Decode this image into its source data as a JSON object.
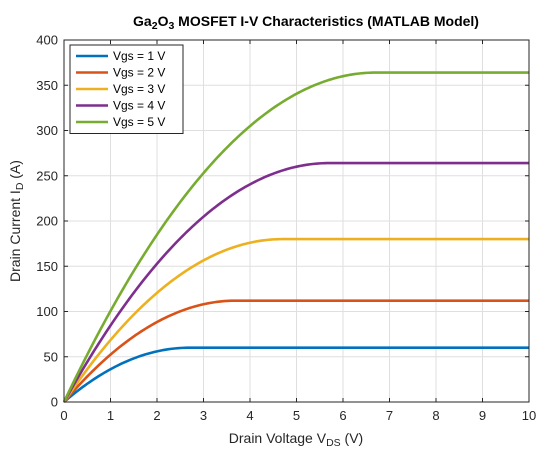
{
  "chart_data": {
    "type": "line",
    "title": {
      "parts": [
        {
          "text": "Ga",
          "sub": false
        },
        {
          "text": "2",
          "sub": true
        },
        {
          "text": "O",
          "sub": false
        },
        {
          "text": "3",
          "sub": true
        },
        {
          "text": " MOSFET I-V Characteristics (MATLAB Model)",
          "sub": false
        }
      ]
    },
    "xlabel": {
      "parts": [
        {
          "text": "Drain Voltage V",
          "sub": false
        },
        {
          "text": "DS",
          "sub": true
        },
        {
          "text": " (V)",
          "sub": false
        }
      ]
    },
    "ylabel": {
      "parts": [
        {
          "text": "Drain Current I",
          "sub": false
        },
        {
          "text": "D",
          "sub": true
        },
        {
          "text": " (A)",
          "sub": false
        }
      ]
    },
    "xlim": [
      0,
      10
    ],
    "ylim": [
      0,
      400
    ],
    "xticks": [
      0,
      1,
      2,
      3,
      4,
      5,
      6,
      7,
      8,
      9,
      10
    ],
    "yticks": [
      0,
      50,
      100,
      150,
      200,
      250,
      300,
      350,
      400
    ],
    "grid": true,
    "legend_position": "top-left",
    "series": [
      {
        "name": "Vgs = 1 V",
        "color": "#0072BD",
        "vsat": 2.7,
        "isat": 60
      },
      {
        "name": "Vgs = 2 V",
        "color": "#D95319",
        "vsat": 3.7,
        "isat": 112
      },
      {
        "name": "Vgs = 3 V",
        "color": "#EDB120",
        "vsat": 4.7,
        "isat": 180
      },
      {
        "name": "Vgs = 4 V",
        "color": "#7E2F8E",
        "vsat": 5.7,
        "isat": 264
      },
      {
        "name": "Vgs = 5 V",
        "color": "#77AC30",
        "vsat": 6.7,
        "isat": 364
      }
    ]
  }
}
